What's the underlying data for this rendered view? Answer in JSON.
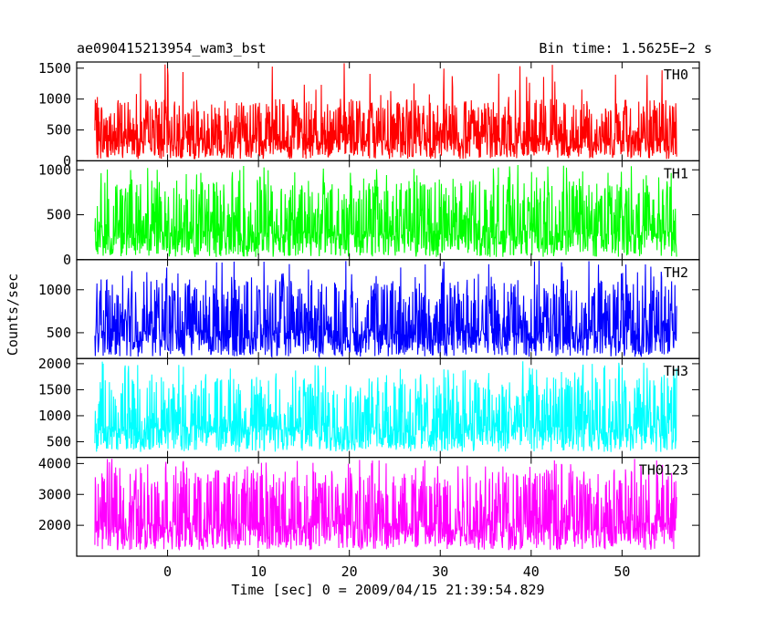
{
  "header": {
    "title": "ae090415213954_wam3_bst",
    "bin_time": "Bin time: 1.5625E−2 s"
  },
  "axes": {
    "xlabel": "Time [sec] 0 = 2009/04/15 21:39:54.829",
    "ylabel": "Counts/sec"
  },
  "chart_data": {
    "type": "line",
    "style": "histogram",
    "bin_width_s": 0.015625,
    "x_range": [
      -8,
      56
    ],
    "xlim": [
      -10,
      58.5
    ],
    "x_ticks": [
      0,
      10,
      20,
      30,
      40,
      50
    ],
    "panels": [
      {
        "name": "TH0",
        "color": "#ff0000",
        "ylim": [
          0,
          1600
        ],
        "y_ticks": [
          0,
          500,
          1000,
          1500
        ],
        "noise": {
          "low": 30,
          "high": 1000,
          "spike_max": 1580
        }
      },
      {
        "name": "TH1",
        "color": "#00ff00",
        "ylim": [
          0,
          1100
        ],
        "y_ticks": [
          0,
          500,
          1000
        ],
        "noise": {
          "low": 30,
          "high": 880,
          "spike_max": 1060
        }
      },
      {
        "name": "TH2",
        "color": "#0000ff",
        "ylim": [
          200,
          1350
        ],
        "y_ticks": [
          500,
          1000
        ],
        "noise": {
          "low": 220,
          "high": 1120,
          "spike_max": 1340
        }
      },
      {
        "name": "TH3",
        "color": "#00ffff",
        "ylim": [
          200,
          2100
        ],
        "y_ticks": [
          500,
          1000,
          1500,
          2000
        ],
        "noise": {
          "low": 300,
          "high": 1750,
          "spike_max": 2050
        }
      },
      {
        "name": "TH0123",
        "color": "#ff00ff",
        "ylim": [
          1000,
          4200
        ],
        "y_ticks": [
          2000,
          3000,
          4000
        ],
        "noise": {
          "low": 1200,
          "high": 3800,
          "spike_max": 4150
        }
      }
    ]
  }
}
